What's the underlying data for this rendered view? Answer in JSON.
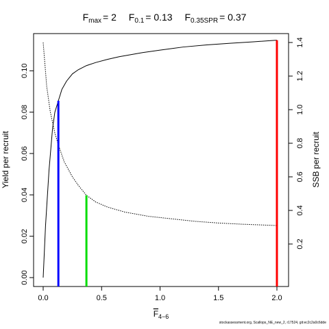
{
  "title": {
    "fmax_label": "F",
    "fmax_sub": "max",
    "fmax_value": "= 2",
    "f01_label": "F",
    "f01_sub": "0.1",
    "f01_value": "= 0.13",
    "fspr_label": "F",
    "fspr_sub": "0.35SPR",
    "fspr_value": "= 0.37"
  },
  "footer": "stockassessment.org, Scallops_NE_new_2, r17524, git:ec2c2a0c6dde",
  "chart_data": {
    "type": "line",
    "xlabel": "F",
    "xlabel_sub": "4−6",
    "ylabel_left": "Yield per recruit",
    "ylabel_right": "SSB per recruit",
    "xlim": [
      0,
      2
    ],
    "ylim_left": [
      0,
      0.115
    ],
    "ylim_right": [
      0,
      1.4
    ],
    "x_ticks": [
      {
        "value": 0,
        "label": "0.0"
      },
      {
        "value": 0.5,
        "label": "0.5"
      },
      {
        "value": 1.0,
        "label": "1.0"
      },
      {
        "value": 1.5,
        "label": "1.5"
      },
      {
        "value": 2.0,
        "label": "2.0"
      }
    ],
    "y_left_ticks": [
      {
        "value": 0,
        "label": "0.00"
      },
      {
        "value": 0.02,
        "label": "0.02"
      },
      {
        "value": 0.04,
        "label": "0.04"
      },
      {
        "value": 0.06,
        "label": "0.06"
      },
      {
        "value": 0.08,
        "label": "0.08"
      },
      {
        "value": 0.1,
        "label": "0.10"
      }
    ],
    "y_right_ticks": [
      {
        "value": 0.2,
        "label": "0.2"
      },
      {
        "value": 0.4,
        "label": "0.4"
      },
      {
        "value": 0.6,
        "label": "0.6"
      },
      {
        "value": 0.8,
        "label": "0.8"
      },
      {
        "value": 1.0,
        "label": "1.0"
      },
      {
        "value": 1.2,
        "label": "1.2"
      },
      {
        "value": 1.4,
        "label": "1.4"
      }
    ],
    "series": [
      {
        "axis": "left",
        "style": "solid",
        "color": "#000000",
        "x": [
          0,
          0.02,
          0.05,
          0.08,
          0.1,
          0.13,
          0.16,
          0.2,
          0.25,
          0.3,
          0.37,
          0.45,
          0.55,
          0.65,
          0.75,
          0.85,
          1.0,
          1.2,
          1.4,
          1.6,
          1.8,
          2.0
        ],
        "y": [
          0.0,
          0.025,
          0.052,
          0.072,
          0.08,
          0.0855,
          0.091,
          0.095,
          0.0985,
          0.1005,
          0.1025,
          0.104,
          0.1055,
          0.1068,
          0.1078,
          0.1088,
          0.11,
          0.1115,
          0.1125,
          0.1133,
          0.114,
          0.1148
        ]
      },
      {
        "axis": "right",
        "style": "dotted",
        "color": "#000000",
        "x": [
          0,
          0.03,
          0.06,
          0.1,
          0.13,
          0.18,
          0.25,
          0.3,
          0.37,
          0.45,
          0.55,
          0.7,
          0.9,
          1.1,
          1.3,
          1.5,
          1.7,
          2.0
        ],
        "y": [
          1.4,
          1.14,
          0.99,
          0.86,
          0.79,
          0.69,
          0.6,
          0.55,
          0.49,
          0.45,
          0.42,
          0.39,
          0.365,
          0.35,
          0.335,
          0.325,
          0.318,
          0.31
        ]
      }
    ],
    "reference_lines": [
      {
        "name": "F0.1",
        "x": 0.13,
        "axis": "left",
        "y_top": 0.0855,
        "color": "#0000ff"
      },
      {
        "name": "F0.35SPR",
        "x": 0.37,
        "axis": "right",
        "y_top": 0.49,
        "color": "#00dd00"
      },
      {
        "name": "Fmax",
        "x": 2.0,
        "axis": "left",
        "y_top": 0.1148,
        "color": "#ff0000"
      }
    ]
  }
}
